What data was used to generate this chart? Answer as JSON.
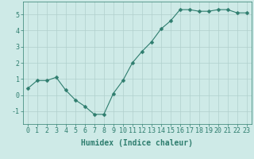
{
  "x": [
    0,
    1,
    2,
    3,
    4,
    5,
    6,
    7,
    8,
    9,
    10,
    11,
    12,
    13,
    14,
    15,
    16,
    17,
    18,
    19,
    20,
    21,
    22,
    23
  ],
  "y": [
    0.4,
    0.9,
    0.9,
    1.1,
    0.3,
    -0.3,
    -0.7,
    -1.2,
    -1.2,
    0.1,
    0.9,
    2.0,
    2.7,
    3.3,
    4.1,
    4.6,
    5.3,
    5.3,
    5.2,
    5.2,
    5.3,
    5.3,
    5.1,
    5.1
  ],
  "line_color": "#2e7d6e",
  "marker": "D",
  "marker_size": 2.5,
  "linewidth": 0.8,
  "bg_color": "#ceeae7",
  "grid_color": "#b0d0cc",
  "xlabel": "Humidex (Indice chaleur)",
  "xlabel_fontsize": 7,
  "tick_fontsize": 6,
  "ylim": [
    -1.8,
    5.8
  ],
  "yticks": [
    -1,
    0,
    1,
    2,
    3,
    4,
    5
  ],
  "xlim": [
    -0.5,
    23.5
  ],
  "xticks": [
    0,
    1,
    2,
    3,
    4,
    5,
    6,
    7,
    8,
    9,
    10,
    11,
    12,
    13,
    14,
    15,
    16,
    17,
    18,
    19,
    20,
    21,
    22,
    23
  ]
}
